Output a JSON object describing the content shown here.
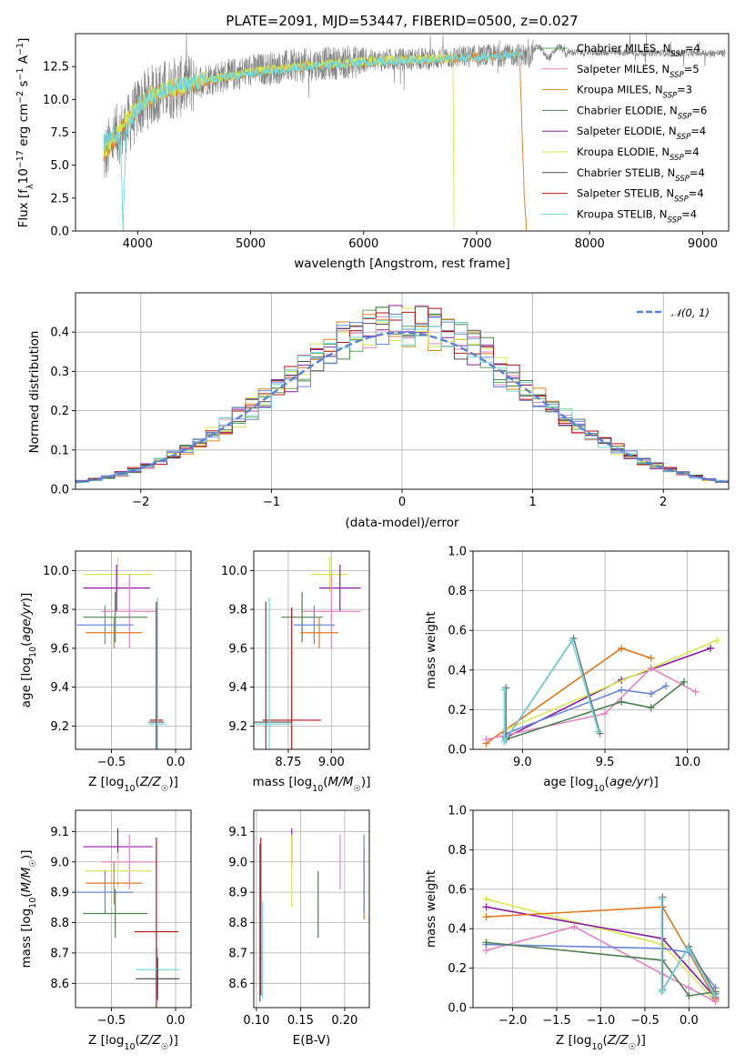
{
  "figure": {
    "title": "PLATE=2091, MJD=53447, FIBERID=0500, z=0.027"
  },
  "colors": [
    "#5fa95f",
    "#e386c2",
    "#d9861a",
    "#4f804f",
    "#8a1f9f",
    "#d8e850",
    "#505050",
    "#b01515",
    "#72d8dc",
    "#6a86d8",
    "#e07820",
    "#7a7a7a"
  ],
  "chart_data": [
    {
      "id": "spectrum",
      "type": "line",
      "title": "PLATE=2091, MJD=53447, FIBERID=0500, z=0.027",
      "xlabel": "wavelength [Angstrom, rest frame]",
      "ylabel": "Flux [f_λ10^-17 erg cm^-2 s^-1 A^-1]",
      "xlim": [
        3450,
        9230
      ],
      "ylim": [
        0,
        15
      ],
      "xticks": [
        4000,
        5000,
        6000,
        7000,
        8000,
        9000
      ],
      "yticks": [
        0.0,
        2.5,
        5.0,
        7.5,
        10.0,
        12.5
      ],
      "grid": false,
      "legend_position": "top-right",
      "legend": [
        {
          "label": "Chabrier MILES, N",
          "sub": "SSP",
          "tail": "=4",
          "color": "#5fa95f"
        },
        {
          "label": "Salpeter MILES, N",
          "sub": "SSP",
          "tail": "=5",
          "color": "#e386c2"
        },
        {
          "label": "Kroupa MILES, N",
          "sub": "SSP",
          "tail": "=3",
          "color": "#d9861a"
        },
        {
          "label": "Chabrier ELODIE, N",
          "sub": "SSP",
          "tail": "=6",
          "color": "#4f804f"
        },
        {
          "label": "Salpeter ELODIE, N",
          "sub": "SSP",
          "tail": "=4",
          "color": "#8a1f9f"
        },
        {
          "label": "Kroupa ELODIE, N",
          "sub": "SSP",
          "tail": "=4",
          "color": "#d8e850"
        },
        {
          "label": "Chabrier STELIB, N",
          "sub": "SSP",
          "tail": "=4",
          "color": "#505050"
        },
        {
          "label": "Salpeter STELIB, N",
          "sub": "SSP",
          "tail": "=4",
          "color": "#b01515"
        },
        {
          "label": "Kroupa STELIB, N",
          "sub": "SSP",
          "tail": "=4",
          "color": "#72d8dc"
        }
      ],
      "continuum": {
        "x": [
          3700,
          3800,
          3900,
          4000,
          4100,
          4200,
          4400,
          4600,
          4800,
          5000,
          5400,
          5800,
          6200,
          6600,
          7000,
          7400
        ],
        "y": [
          5.5,
          7.2,
          7.8,
          9.3,
          10.2,
          10.6,
          11.0,
          11.6,
          11.8,
          12.2,
          12.6,
          12.8,
          13.0,
          13.1,
          13.3,
          13.4
        ]
      },
      "models": [
        {
          "color": "#e07820",
          "x": [
            3700,
            3850,
            4000,
            4200,
            4500,
            5000,
            5500,
            6000,
            6500,
            7000,
            7380,
            7420,
            7440
          ],
          "y": [
            5.8,
            7.6,
            9.4,
            10.5,
            11.2,
            12.0,
            12.5,
            12.8,
            13.0,
            13.2,
            13.4,
            3.0,
            0.0
          ]
        },
        {
          "color": "#d8e850",
          "x": [
            3700,
            3850,
            4000,
            4200,
            4500,
            5000,
            5500,
            6000,
            6500,
            6790,
            6800
          ],
          "y": [
            6.0,
            7.8,
            9.6,
            10.7,
            11.3,
            12.1,
            12.6,
            12.9,
            13.1,
            13.1,
            0.0
          ]
        },
        {
          "color": "#72d8dc",
          "x": [
            3700,
            3800,
            3850,
            3870,
            3900,
            4000,
            4200,
            4500,
            5000,
            5500,
            6000,
            6500,
            7000,
            7400
          ],
          "y": [
            6.8,
            7.4,
            6.5,
            0.0,
            7.6,
            9.5,
            10.6,
            11.3,
            12.0,
            12.5,
            12.8,
            13.0,
            13.2,
            13.4
          ]
        }
      ]
    },
    {
      "id": "residuals",
      "type": "line",
      "xlabel": "(data-model)/error",
      "ylabel": "Normed distribution",
      "xlim": [
        -2.5,
        2.5
      ],
      "ylim": [
        0,
        0.5
      ],
      "xticks": [
        -2,
        -1,
        0,
        1,
        2
      ],
      "yticks": [
        0.0,
        0.1,
        0.2,
        0.3,
        0.4
      ],
      "grid": true,
      "legend_position": "top-right",
      "legend": [
        {
          "label": "𝒩(0, 1)",
          "color": "#5a82d4",
          "style": "dashed"
        }
      ],
      "normal_curve": {
        "mean": 0,
        "sigma": 1
      }
    },
    {
      "id": "age-vs-z",
      "type": "scatter",
      "xlabel": "Z [log10(Z/Z☉)]",
      "ylabel": "age [log10(age/yr)]",
      "xlim": [
        -0.78,
        0.12
      ],
      "ylim": [
        9.08,
        10.1
      ],
      "xticks": [
        -0.5,
        0.0
      ],
      "yticks": [
        9.2,
        9.4,
        9.6,
        9.8,
        10.0
      ],
      "grid": true,
      "points": [
        {
          "x": -0.45,
          "y": 9.98,
          "xerr": 0.27,
          "yerr": 0.09,
          "color": "#d8e850"
        },
        {
          "x": -0.46,
          "y": 9.91,
          "xerr": 0.26,
          "yerr": 0.12,
          "color": "#8a1f9f"
        },
        {
          "x": -0.36,
          "y": 9.79,
          "xerr": 0.22,
          "yerr": 0.19,
          "color": "#e386c2"
        },
        {
          "x": -0.47,
          "y": 9.76,
          "xerr": 0.25,
          "yerr": 0.13,
          "color": "#4f804f"
        },
        {
          "x": -0.55,
          "y": 9.72,
          "xerr": 0.22,
          "yerr": 0.1,
          "color": "#6a86d8"
        },
        {
          "x": -0.48,
          "y": 9.68,
          "xerr": 0.22,
          "yerr": 0.08,
          "color": "#e07820"
        },
        {
          "x": -0.15,
          "y": 9.23,
          "xerr": 0.05,
          "yerr": 0.58,
          "color": "#b01515"
        },
        {
          "x": -0.15,
          "y": 9.22,
          "xerr": 0.06,
          "yerr": 0.62,
          "color": "#505050"
        },
        {
          "x": -0.14,
          "y": 9.21,
          "xerr": 0.07,
          "yerr": 0.65,
          "color": "#72d8dc"
        }
      ]
    },
    {
      "id": "age-vs-mass",
      "type": "scatter",
      "xlabel": "mass [log10(M/M☉)]",
      "xlim": [
        8.55,
        9.22
      ],
      "ylim": [
        9.08,
        10.1
      ],
      "xticks": [
        8.75,
        9.0
      ],
      "yticks": [
        9.2,
        9.4,
        9.6,
        9.8,
        10.0
      ],
      "grid": true,
      "points": [
        {
          "x": 8.99,
          "y": 9.98,
          "xerr": 0.11,
          "yerr": 0.09,
          "color": "#d8e850"
        },
        {
          "x": 9.05,
          "y": 9.91,
          "xerr": 0.12,
          "yerr": 0.12,
          "color": "#8a1f9f"
        },
        {
          "x": 9.0,
          "y": 9.79,
          "xerr": 0.17,
          "yerr": 0.19,
          "color": "#e386c2"
        },
        {
          "x": 8.83,
          "y": 9.76,
          "xerr": 0.12,
          "yerr": 0.13,
          "color": "#4f804f"
        },
        {
          "x": 8.9,
          "y": 9.72,
          "xerr": 0.12,
          "yerr": 0.1,
          "color": "#6a86d8"
        },
        {
          "x": 8.93,
          "y": 9.68,
          "xerr": 0.11,
          "yerr": 0.08,
          "color": "#e07820"
        },
        {
          "x": 8.77,
          "y": 9.23,
          "xerr": 0.17,
          "yerr": 0.58,
          "color": "#b01515"
        },
        {
          "x": 8.62,
          "y": 9.22,
          "xerr": 0.15,
          "yerr": 0.62,
          "color": "#505050"
        },
        {
          "x": 8.64,
          "y": 9.21,
          "xerr": 0.14,
          "yerr": 0.65,
          "color": "#72d8dc"
        }
      ]
    },
    {
      "id": "massweight-vs-age",
      "type": "line",
      "xlabel": "age [log10(age/yr)]",
      "ylabel": "mass weight",
      "xlim": [
        8.7,
        10.25
      ],
      "ylim": [
        0,
        1.0
      ],
      "xticks": [
        9.0,
        9.5,
        10.0
      ],
      "yticks": [
        0.0,
        0.2,
        0.4,
        0.6,
        0.8,
        1.0
      ],
      "grid": true,
      "series": [
        {
          "color": "#e07820",
          "x": [
            8.78,
            9.6,
            9.78
          ],
          "y": [
            0.03,
            0.51,
            0.46
          ]
        },
        {
          "color": "#8a1f9f",
          "x": [
            8.9,
            9.6,
            10.14
          ],
          "y": [
            0.06,
            0.35,
            0.51
          ]
        },
        {
          "color": "#d8e850",
          "x": [
            8.9,
            10.18
          ],
          "y": [
            0.1,
            0.55
          ]
        },
        {
          "color": "#e386c2",
          "x": [
            8.78,
            9.5,
            9.78,
            10.05
          ],
          "y": [
            0.05,
            0.18,
            0.41,
            0.29
          ]
        },
        {
          "color": "#6a86d8",
          "x": [
            8.9,
            9.6,
            9.78,
            9.87
          ],
          "y": [
            0.08,
            0.3,
            0.28,
            0.32
          ]
        },
        {
          "color": "#4f804f",
          "x": [
            8.9,
            9.6,
            9.78,
            9.98
          ],
          "y": [
            0.05,
            0.24,
            0.21,
            0.34
          ]
        },
        {
          "color": "#7a7a7a",
          "x": [
            8.9,
            8.9,
            9.31,
            9.47
          ],
          "y": [
            0.31,
            0.05,
            0.56,
            0.08
          ]
        },
        {
          "color": "#72d8dc",
          "x": [
            8.89,
            8.89,
            9.3,
            9.46
          ],
          "y": [
            0.3,
            0.04,
            0.55,
            0.09
          ]
        }
      ]
    },
    {
      "id": "mass-vs-z",
      "type": "scatter",
      "xlabel": "Z [log10(Z/Z☉)]",
      "ylabel": "mass [log10(M/M☉)]",
      "xlim": [
        -0.78,
        0.12
      ],
      "ylim": [
        8.52,
        9.17
      ],
      "xticks": [
        -0.5,
        0.0
      ],
      "yticks": [
        8.6,
        8.7,
        8.8,
        8.9,
        9.0,
        9.1
      ],
      "grid": true,
      "points": [
        {
          "x": -0.45,
          "y": 9.05,
          "xerr": 0.27,
          "yerr": 0.06,
          "color": "#8a1f9f"
        },
        {
          "x": -0.36,
          "y": 9.0,
          "xerr": 0.22,
          "yerr": 0.09,
          "color": "#e386c2"
        },
        {
          "x": -0.45,
          "y": 8.97,
          "xerr": 0.26,
          "yerr": 0.06,
          "color": "#d8e850"
        },
        {
          "x": -0.48,
          "y": 8.93,
          "xerr": 0.22,
          "yerr": 0.07,
          "color": "#e07820"
        },
        {
          "x": -0.55,
          "y": 8.9,
          "xerr": 0.22,
          "yerr": 0.07,
          "color": "#6a86d8"
        },
        {
          "x": -0.47,
          "y": 8.83,
          "xerr": 0.25,
          "yerr": 0.08,
          "color": "#4f804f"
        },
        {
          "x": -0.15,
          "y": 8.77,
          "xerr": 0.17,
          "yerr": 0.31,
          "color": "#b01515"
        },
        {
          "x": -0.14,
          "y": 8.645,
          "xerr": 0.17,
          "yerr": 0.07,
          "color": "#72d8dc"
        },
        {
          "x": -0.14,
          "y": 8.615,
          "xerr": 0.17,
          "yerr": 0.07,
          "color": "#505050"
        }
      ]
    },
    {
      "id": "mass-vs-ebv",
      "type": "scatter",
      "xlabel": "E(B-V)",
      "xlim": [
        0.097,
        0.228
      ],
      "ylim": [
        8.52,
        9.17
      ],
      "xticks": [
        0.1,
        0.15,
        0.2
      ],
      "yticks": [
        8.6,
        8.7,
        8.8,
        8.9,
        9.0,
        9.1
      ],
      "grid": true,
      "points": [
        {
          "x": 0.14,
          "y": 9.05,
          "xerr": 0,
          "yerr": 0.06,
          "color": "#8a1f9f"
        },
        {
          "x": 0.14,
          "y": 8.97,
          "xerr": 0,
          "yerr": 0.12,
          "color": "#d8e850"
        },
        {
          "x": 0.195,
          "y": 9.0,
          "xerr": 0,
          "yerr": 0.09,
          "color": "#e386c2"
        },
        {
          "x": 0.222,
          "y": 8.93,
          "xerr": 0,
          "yerr": 0.12,
          "color": "#e07820"
        },
        {
          "x": 0.222,
          "y": 8.96,
          "xerr": 0,
          "yerr": 0.13,
          "color": "#6a86d8"
        },
        {
          "x": 0.17,
          "y": 8.86,
          "xerr": 0,
          "yerr": 0.11,
          "color": "#4f804f"
        },
        {
          "x": 0.105,
          "y": 8.82,
          "xerr": 0,
          "yerr": 0.26,
          "color": "#b01515"
        },
        {
          "x": 0.104,
          "y": 8.8,
          "xerr": 0,
          "yerr": 0.26,
          "color": "#505050"
        },
        {
          "x": 0.107,
          "y": 8.71,
          "xerr": 0,
          "yerr": 0.16,
          "color": "#72d8dc"
        }
      ]
    },
    {
      "id": "massweight-vs-z",
      "type": "line",
      "xlabel": "Z [log10(Z/Z☉)]",
      "ylabel": "mass weight",
      "xlim": [
        -2.45,
        0.45
      ],
      "ylim": [
        0,
        1.0
      ],
      "xticks": [
        -2.0,
        -1.5,
        -1.0,
        -0.5,
        0.0
      ],
      "yticks": [
        0.0,
        0.2,
        0.4,
        0.6,
        0.8,
        1.0
      ],
      "grid": true,
      "series": [
        {
          "color": "#d8e850",
          "x": [
            -2.3,
            -0.3,
            0.3
          ],
          "y": [
            0.55,
            0.32,
            0.03
          ]
        },
        {
          "color": "#8a1f9f",
          "x": [
            -2.3,
            -0.3,
            0.3
          ],
          "y": [
            0.51,
            0.35,
            0.05
          ]
        },
        {
          "color": "#e07820",
          "x": [
            -2.3,
            -0.3,
            0.0,
            0.3
          ],
          "y": [
            0.46,
            0.51,
            0.28,
            0.04
          ]
        },
        {
          "color": "#e386c2",
          "x": [
            -2.3,
            -1.3,
            -0.3,
            0.0,
            0.3
          ],
          "y": [
            0.29,
            0.41,
            0.17,
            0.1,
            0.03
          ]
        },
        {
          "color": "#6a86d8",
          "x": [
            -2.3,
            -0.3,
            0.0,
            0.3
          ],
          "y": [
            0.32,
            0.3,
            0.28,
            0.1
          ]
        },
        {
          "color": "#4f804f",
          "x": [
            -2.3,
            -0.3,
            0.0,
            0.3
          ],
          "y": [
            0.33,
            0.24,
            0.06,
            0.08
          ]
        },
        {
          "color": "#7a7a7a",
          "x": [
            -0.3,
            -0.3,
            0.0,
            0.3
          ],
          "y": [
            0.56,
            0.09,
            0.31,
            0.07
          ]
        },
        {
          "color": "#72d8dc",
          "x": [
            -0.31,
            -0.31,
            -0.01,
            0.29
          ],
          "y": [
            0.55,
            0.08,
            0.3,
            0.06
          ]
        }
      ]
    }
  ]
}
